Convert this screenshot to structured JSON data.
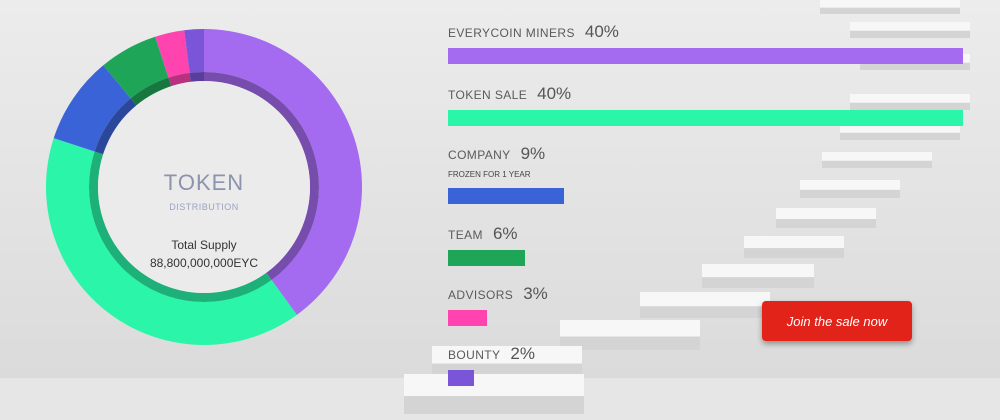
{
  "chart_data": {
    "type": "pie",
    "title": "TOKEN",
    "subtitle": "DISTRIBUTION",
    "categories": [
      "EVERYCOIN MINERS",
      "TOKEN SALE",
      "COMPANY",
      "TEAM",
      "ADVISORS",
      "BOUNTY"
    ],
    "values": [
      40,
      40,
      9,
      6,
      3,
      2
    ],
    "value_suffix": "%",
    "colors": [
      "#a46af0",
      "#2af5a8",
      "#3a63d8",
      "#1fa558",
      "#ff44b0",
      "#7a55d8"
    ],
    "notes": {
      "COMPANY": "FROZEN FOR 1 YEAR"
    },
    "total_supply_label": "Total Supply",
    "total_supply_value": "88,800,000,000EYC"
  },
  "cta": {
    "label": "Join the sale now",
    "color": "#e2231a"
  }
}
